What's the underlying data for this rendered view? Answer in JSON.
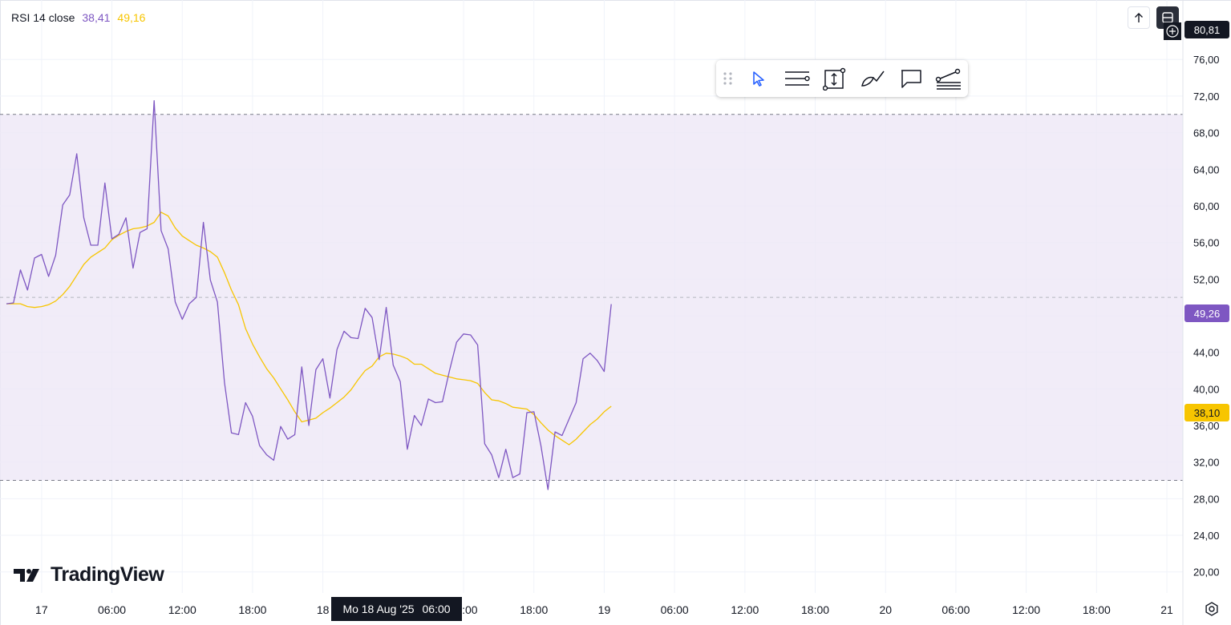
{
  "legend": {
    "name": "RSI 14 close",
    "value1": "38,41",
    "value2": "49,16"
  },
  "price_boxes": {
    "top": "80,81",
    "rsi": "49,26",
    "ma": "38,10"
  },
  "crosshair": {
    "date": "Mo 18 Aug '25",
    "time": "06:00"
  },
  "logo": {
    "text": "TradingView"
  },
  "toolbar": {
    "items": [
      "drag-handle-icon",
      "cursor-icon",
      "horizontal-lines-icon",
      "measure-icon",
      "brush-icon",
      "callout-icon",
      "path-icon"
    ]
  },
  "colors": {
    "rsi": "#7e57c2",
    "ma": "#f7c500",
    "band": "#ede7f6",
    "grid": "#f0f3fa",
    "text": "#131722"
  },
  "chart_data": {
    "type": "line",
    "ylim": [
      17.7,
      82.5
    ],
    "yticks": [
      20,
      24,
      28,
      32,
      36,
      40,
      44,
      48,
      52,
      56,
      60,
      64,
      68,
      72,
      76
    ],
    "ytick_labels": [
      "20,00",
      "24,00",
      "28,00",
      "32,00",
      "36,00",
      "40,00",
      "44,00",
      "48,00",
      "52,00",
      "56,00",
      "60,00",
      "64,00",
      "68,00",
      "72,00",
      "76,00"
    ],
    "bands": {
      "upper": 70,
      "middle": 50,
      "lower": 30
    },
    "xticks": [
      {
        "label": "17",
        "i": 5
      },
      {
        "label": "06:00",
        "i": 15
      },
      {
        "label": "12:00",
        "i": 25
      },
      {
        "label": "18:00",
        "i": 35
      },
      {
        "label": "18",
        "i": 45
      },
      {
        "label": "12:00",
        "i": 65
      },
      {
        "label": "18:00",
        "i": 75
      },
      {
        "label": "19",
        "i": 85
      },
      {
        "label": "06:00",
        "i": 95
      },
      {
        "label": "12:00",
        "i": 105
      },
      {
        "label": "18:00",
        "i": 115
      },
      {
        "label": "20",
        "i": 125
      },
      {
        "label": "06:00",
        "i": 135
      },
      {
        "label": "12:00",
        "i": 145
      },
      {
        "label": "18:00",
        "i": 155
      },
      {
        "label": "21",
        "i": 165
      }
    ],
    "series": [
      {
        "values": [
          49.3,
          49.4,
          53.0,
          50.8,
          54.3,
          54.7,
          52.3,
          54.6,
          60.1,
          61.2,
          65.7,
          58.7,
          55.7,
          55.7,
          62.5,
          56.4,
          56.9,
          58.7,
          53.2,
          57.1,
          57.5,
          71.5,
          57.3,
          55.3,
          49.5,
          47.6,
          49.3,
          50.0,
          58.2,
          51.9,
          49.5,
          40.7,
          35.2,
          35.0,
          38.5,
          37.0,
          33.8,
          32.8,
          32.2,
          35.9,
          34.5,
          35.0,
          42.4,
          36.0,
          42.1,
          43.3,
          39.0,
          44.3,
          46.3,
          45.6,
          45.5,
          48.8,
          47.8,
          43.2,
          48.9,
          42.6,
          40.8,
          33.4,
          37.1,
          36.0,
          38.9,
          38.5,
          38.6,
          42.0,
          45.1,
          46.0,
          45.9,
          44.8,
          34.0,
          32.8,
          30.3,
          33.4,
          30.3,
          30.7,
          37.4,
          37.5,
          33.8,
          29.0,
          35.3,
          34.9,
          36.7,
          38.5,
          43.3,
          43.9,
          43.1,
          41.9,
          49.26
        ]
      },
      {
        "values": [
          49.3,
          49.3,
          49.3,
          49.0,
          48.9,
          49.0,
          49.2,
          49.6,
          50.3,
          51.2,
          52.4,
          53.6,
          54.4,
          54.9,
          55.4,
          56.3,
          56.8,
          57.2,
          57.5,
          57.6,
          57.8,
          58.2,
          59.3,
          58.9,
          57.6,
          56.7,
          56.2,
          55.7,
          55.4,
          55.0,
          54.4,
          52.7,
          50.8,
          49.2,
          46.6,
          44.9,
          43.5,
          42.2,
          41.2,
          40.0,
          38.8,
          37.5,
          36.4,
          36.6,
          36.8,
          37.4,
          37.9,
          38.5,
          39.1,
          39.9,
          41.0,
          42.0,
          42.5,
          43.5,
          43.9,
          43.8,
          43.6,
          43.3,
          42.7,
          42.7,
          42.2,
          41.7,
          41.5,
          41.3,
          41.1,
          41.0,
          40.9,
          40.6,
          39.6,
          38.8,
          38.7,
          38.4,
          38.0,
          37.9,
          37.8,
          37.2,
          36.3,
          35.5,
          34.9,
          34.4,
          33.9,
          34.5,
          35.3,
          36.1,
          36.7,
          37.5,
          38.1
        ]
      }
    ]
  }
}
